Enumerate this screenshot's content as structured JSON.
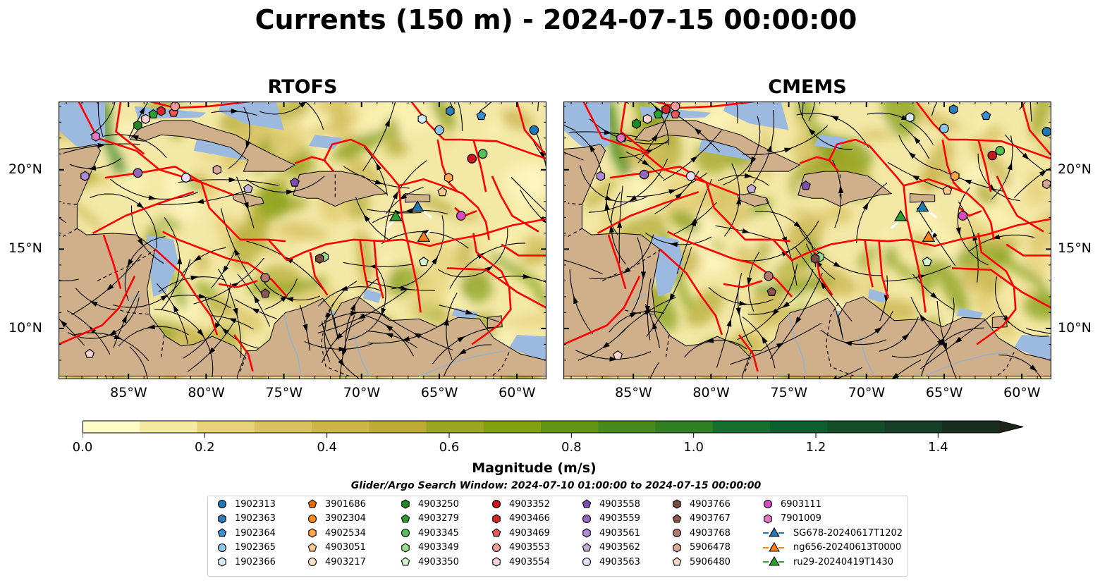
{
  "title": "Currents (150 m) - 2024-07-15 00:00:00",
  "panels": [
    {
      "title": "RTOFS"
    },
    {
      "title": "CMEMS"
    }
  ],
  "lon_labels": [
    "85°W",
    "80°W",
    "75°W",
    "70°W",
    "65°W",
    "60°W"
  ],
  "lat_labels": [
    "20°N",
    "15°N",
    "10°N"
  ],
  "colors": {
    "land": "#cfb08a",
    "shallow": "#9cb9e0",
    "eez": "#ff0000",
    "glider_sg678": "#1f77b4",
    "glider_ng656": "#ff7f0e",
    "glider_ru29": "#2ca02c"
  },
  "colorbar": {
    "label": "Magnitude (m/s)",
    "ticks": [
      "0.0",
      "0.2",
      "0.4",
      "0.6",
      "0.8",
      "1.0",
      "1.2",
      "1.4"
    ],
    "min": 0,
    "max": 1.5,
    "extend": "max",
    "colors": [
      "#fffbc4",
      "#f5e8a0",
      "#e8d27a",
      "#dcc160",
      "#cfb548",
      "#bdab35",
      "#9ca51f",
      "#82a010",
      "#639514",
      "#4a8a1c",
      "#307f23",
      "#176e2e",
      "#0f5e30",
      "#124e2a",
      "#163e26",
      "#1a2e1f",
      "#1d2519"
    ]
  },
  "search_window": "Glider/Argo Search Window: 2024-07-10 01:00:00 to 2024-07-15 00:00:00",
  "legend": [
    {
      "label": "1902313",
      "marker": "circle",
      "color": "#1f77b4"
    },
    {
      "label": "1902363",
      "marker": "hexagon",
      "color": "#2c7fb8"
    },
    {
      "label": "1902364",
      "marker": "pentagon",
      "color": "#3a8fd0"
    },
    {
      "label": "1902365",
      "marker": "circle",
      "color": "#8ec5ea"
    },
    {
      "label": "1902366",
      "marker": "hexagon",
      "color": "#d6ecfb"
    },
    {
      "label": "3901686",
      "marker": "pentagon",
      "color": "#e66d00"
    },
    {
      "label": "3902304",
      "marker": "circle",
      "color": "#ff8c1a"
    },
    {
      "label": "4902534",
      "marker": "hexagon",
      "color": "#ffa54a"
    },
    {
      "label": "4903051",
      "marker": "pentagon",
      "color": "#ffc88e"
    },
    {
      "label": "4903217",
      "marker": "circle",
      "color": "#ffe2c4"
    },
    {
      "label": "4903250",
      "marker": "hexagon",
      "color": "#1f8a1f"
    },
    {
      "label": "4903279",
      "marker": "pentagon",
      "color": "#2ca02c"
    },
    {
      "label": "4903345",
      "marker": "circle",
      "color": "#55c055"
    },
    {
      "label": "4903349",
      "marker": "hexagon",
      "color": "#98df8a"
    },
    {
      "label": "4903350",
      "marker": "pentagon",
      "color": "#d3f5cb"
    },
    {
      "label": "4903352",
      "marker": "circle",
      "color": "#c8181e"
    },
    {
      "label": "4903466",
      "marker": "hexagon",
      "color": "#d62728"
    },
    {
      "label": "4903469",
      "marker": "pentagon",
      "color": "#e8595a"
    },
    {
      "label": "4903553",
      "marker": "circle",
      "color": "#f29a98"
    },
    {
      "label": "4903554",
      "marker": "hexagon",
      "color": "#fbd3d2"
    },
    {
      "label": "4903558",
      "marker": "pentagon",
      "color": "#7d4fb0"
    },
    {
      "label": "4903559",
      "marker": "circle",
      "color": "#9467bd"
    },
    {
      "label": "4903561",
      "marker": "hexagon",
      "color": "#ad88d6"
    },
    {
      "label": "4903562",
      "marker": "pentagon",
      "color": "#c5b0d5"
    },
    {
      "label": "4903563",
      "marker": "circle",
      "color": "#eadcf6"
    },
    {
      "label": "4903766",
      "marker": "hexagon",
      "color": "#7a4a3c"
    },
    {
      "label": "4903767",
      "marker": "pentagon",
      "color": "#8c564b"
    },
    {
      "label": "4903768",
      "marker": "circle",
      "color": "#b07a6c"
    },
    {
      "label": "5906478",
      "marker": "hexagon",
      "color": "#d8a796"
    },
    {
      "label": "5906480",
      "marker": "pentagon",
      "color": "#f6d5ca"
    },
    {
      "label": "6903111",
      "marker": "circle",
      "color": "#d44bc2"
    },
    {
      "label": "7901009",
      "marker": "hexagon",
      "color": "#e377c2"
    },
    {
      "label": "SG678-20240617T1202",
      "marker": "triangle-line",
      "color": "#1f77b4"
    },
    {
      "label": "ng656-20240613T0000",
      "marker": "triangle-line",
      "color": "#ff7f0e"
    },
    {
      "label": "ru29-20240419T1430",
      "marker": "triangle-line",
      "color": "#2ca02c"
    }
  ]
}
